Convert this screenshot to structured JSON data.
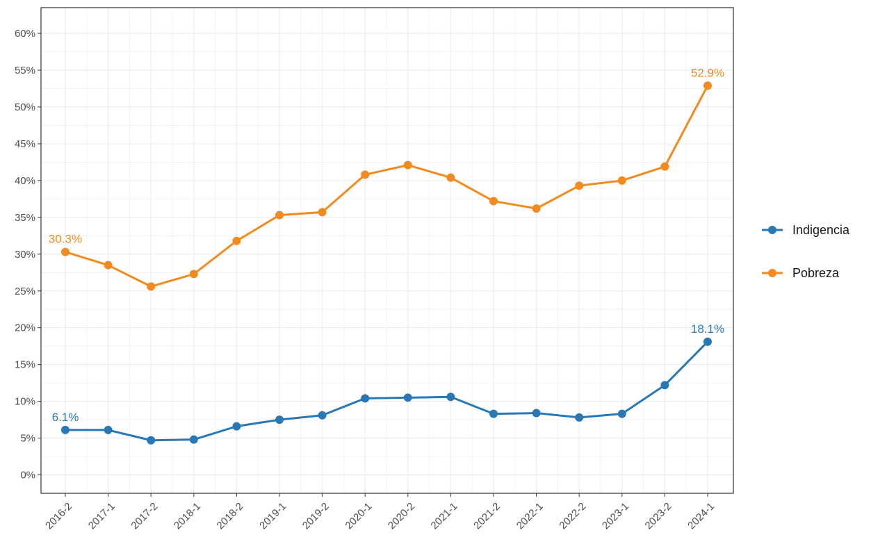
{
  "colors": {
    "indigencia": "#2878b5",
    "pobreza": "#f28a1e",
    "grid": "#ebebeb",
    "panel_border": "#333333",
    "tick_text": "#4d4d4d"
  },
  "chart_data": {
    "type": "line",
    "title": "",
    "xlabel": "",
    "ylabel": "",
    "categories": [
      "2016-2",
      "2017-1",
      "2017-2",
      "2018-1",
      "2018-2",
      "2019-1",
      "2019-2",
      "2020-1",
      "2020-2",
      "2021-1",
      "2021-2",
      "2022-1",
      "2022-2",
      "2023-1",
      "2023-2",
      "2024-1"
    ],
    "ylim": [
      -0.025,
      0.635
    ],
    "y_ticks": [
      0,
      0.05,
      0.1,
      0.15,
      0.2,
      0.25,
      0.3,
      0.35,
      0.4,
      0.45,
      0.5,
      0.55,
      0.6
    ],
    "y_tick_labels": [
      "0%",
      "5%",
      "10%",
      "15%",
      "20%",
      "25%",
      "30%",
      "35%",
      "40%",
      "45%",
      "50%",
      "55%",
      "60%"
    ],
    "grid": true,
    "legend_position": "right",
    "series": [
      {
        "name": "Indigencia",
        "color": "#2878b5",
        "values": [
          0.061,
          0.061,
          0.047,
          0.048,
          0.066,
          0.075,
          0.081,
          0.104,
          0.105,
          0.106,
          0.083,
          0.084,
          0.078,
          0.083,
          0.122,
          0.181
        ],
        "annotations": [
          {
            "index": 0,
            "text": "6.1%"
          },
          {
            "index": 15,
            "text": "18.1%"
          }
        ]
      },
      {
        "name": "Pobreza",
        "color": "#f28a1e",
        "values": [
          0.303,
          0.285,
          0.256,
          0.273,
          0.318,
          0.353,
          0.357,
          0.408,
          0.421,
          0.404,
          0.372,
          0.362,
          0.393,
          0.4,
          0.419,
          0.529
        ],
        "annotations": [
          {
            "index": 0,
            "text": "30.3%"
          },
          {
            "index": 15,
            "text": "52.9%"
          }
        ]
      }
    ]
  }
}
